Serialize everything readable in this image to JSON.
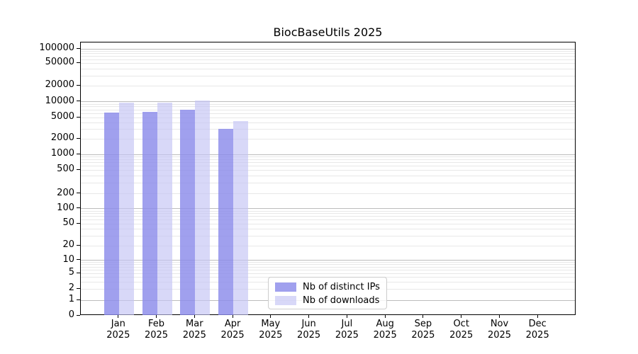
{
  "chart_data": {
    "type": "bar",
    "title": "BiocBaseUtils 2025",
    "categories": [
      {
        "month": "Jan",
        "year": "2025"
      },
      {
        "month": "Feb",
        "year": "2025"
      },
      {
        "month": "Mar",
        "year": "2025"
      },
      {
        "month": "Apr",
        "year": "2025"
      },
      {
        "month": "May",
        "year": "2025"
      },
      {
        "month": "Jun",
        "year": "2025"
      },
      {
        "month": "Jul",
        "year": "2025"
      },
      {
        "month": "Aug",
        "year": "2025"
      },
      {
        "month": "Sep",
        "year": "2025"
      },
      {
        "month": "Oct",
        "year": "2025"
      },
      {
        "month": "Nov",
        "year": "2025"
      },
      {
        "month": "Dec",
        "year": "2025"
      }
    ],
    "series": [
      {
        "name": "Nb of distinct IPs",
        "color": "#8b8bea",
        "alpha": 0.82,
        "values": [
          6200,
          6400,
          7000,
          3100,
          null,
          null,
          null,
          null,
          null,
          null,
          null,
          null
        ]
      },
      {
        "name": "Nb of downloads",
        "color": "#c3c3f4",
        "alpha": 0.65,
        "values": [
          9700,
          9700,
          10500,
          4300,
          null,
          null,
          null,
          null,
          null,
          null,
          null,
          null
        ]
      }
    ],
    "y_axis": {
      "scale": "log-like",
      "tick_labels": [
        "100000",
        "50000",
        "20000",
        "10000",
        "5000",
        "2000",
        "1000",
        "500",
        "200",
        "100",
        "50",
        "20",
        "10",
        "5",
        "2",
        "1",
        "0"
      ],
      "range_top": 100000,
      "range_bottom": 0
    },
    "grid": "horizontal major and minor gridlines",
    "legend_position": "bottom-center",
    "colors": {
      "grid_major": "#bcbcbc",
      "grid_minor": "#e8e8e8",
      "spine": "#000000",
      "background": "#ffffff"
    }
  }
}
